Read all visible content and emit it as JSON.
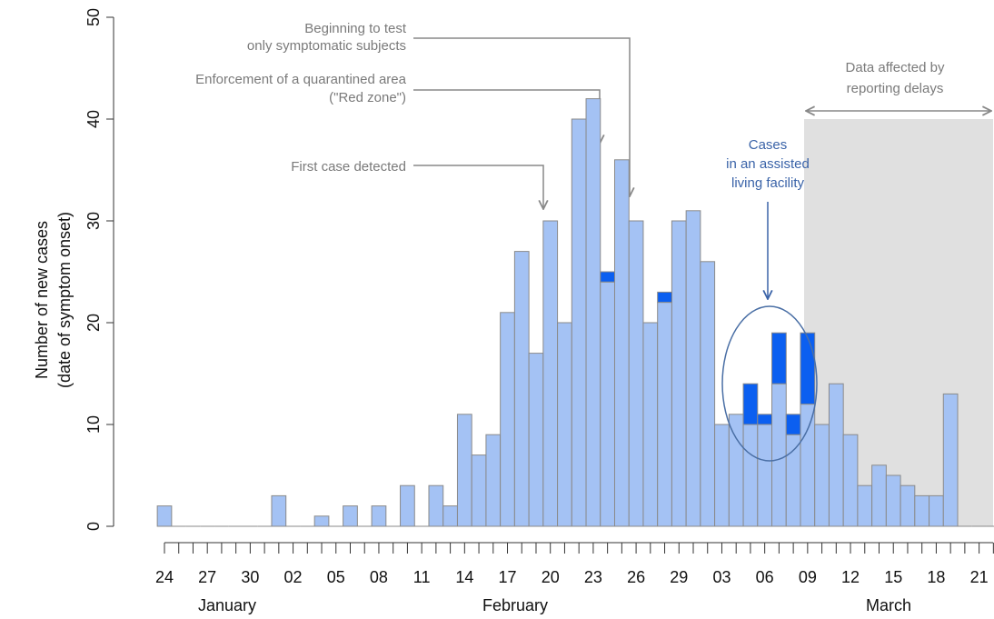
{
  "chart_data": {
    "type": "bar",
    "stacked": true,
    "y_label": [
      "Number of new cases",
      "(date of symptom onset)"
    ],
    "categories": [
      "24",
      null,
      null,
      "27",
      null,
      null,
      "30",
      null,
      null,
      "02",
      null,
      null,
      "05",
      null,
      null,
      "08",
      null,
      null,
      "11",
      null,
      null,
      "14",
      null,
      null,
      "17",
      null,
      null,
      "20",
      null,
      null,
      "23",
      null,
      null,
      "26",
      null,
      null,
      "29",
      null,
      null,
      "03",
      null,
      null,
      "06",
      null,
      null,
      "09",
      null,
      null,
      "12",
      null,
      null,
      "15",
      null,
      null,
      "18",
      null,
      null,
      "21",
      null
    ],
    "x_groups": [
      "January",
      "February",
      "March"
    ],
    "series": [
      {
        "color": "#a4c2f4",
        "values": [
          2,
          0,
          0,
          0,
          0,
          0,
          0,
          0,
          3,
          0,
          0,
          1,
          0,
          2,
          0,
          2,
          0,
          4,
          0,
          4,
          2,
          11,
          7,
          9,
          21,
          27,
          17,
          30,
          20,
          40,
          42,
          24,
          36,
          30,
          20,
          22,
          30,
          31,
          26,
          10,
          11,
          10,
          10,
          14,
          9,
          12,
          10,
          14,
          9,
          4,
          6,
          5,
          4,
          3,
          3,
          13,
          0,
          0,
          0
        ]
      },
      {
        "color": "#0b5ff0",
        "values": [
          0,
          0,
          0,
          0,
          0,
          0,
          0,
          0,
          0,
          0,
          0,
          0,
          0,
          0,
          0,
          0,
          0,
          0,
          0,
          0,
          0,
          0,
          0,
          0,
          0,
          0,
          0,
          0,
          0,
          0,
          0,
          1,
          0,
          0,
          0,
          1,
          0,
          0,
          0,
          0,
          0,
          4,
          1,
          5,
          2,
          7,
          0,
          0,
          0,
          0,
          0,
          0,
          0,
          0,
          0,
          0,
          0,
          0,
          0
        ]
      }
    ],
    "ylim": [
      0,
      50
    ],
    "yticks": [
      0,
      10,
      20,
      30,
      40,
      50
    ],
    "annotations": [
      {
        "lines": [
          "Beginning to test",
          "only symptomatic subjects"
        ]
      },
      {
        "lines": [
          "Enforcement of a quarantined area",
          "(\"Red zone\")"
        ]
      },
      {
        "lines": [
          "First case detected"
        ]
      },
      {
        "lines": [
          "Cases",
          "in an assisted",
          "living facility"
        ]
      },
      {
        "lines": [
          "Data affected by",
          "reporting delays"
        ]
      }
    ]
  }
}
